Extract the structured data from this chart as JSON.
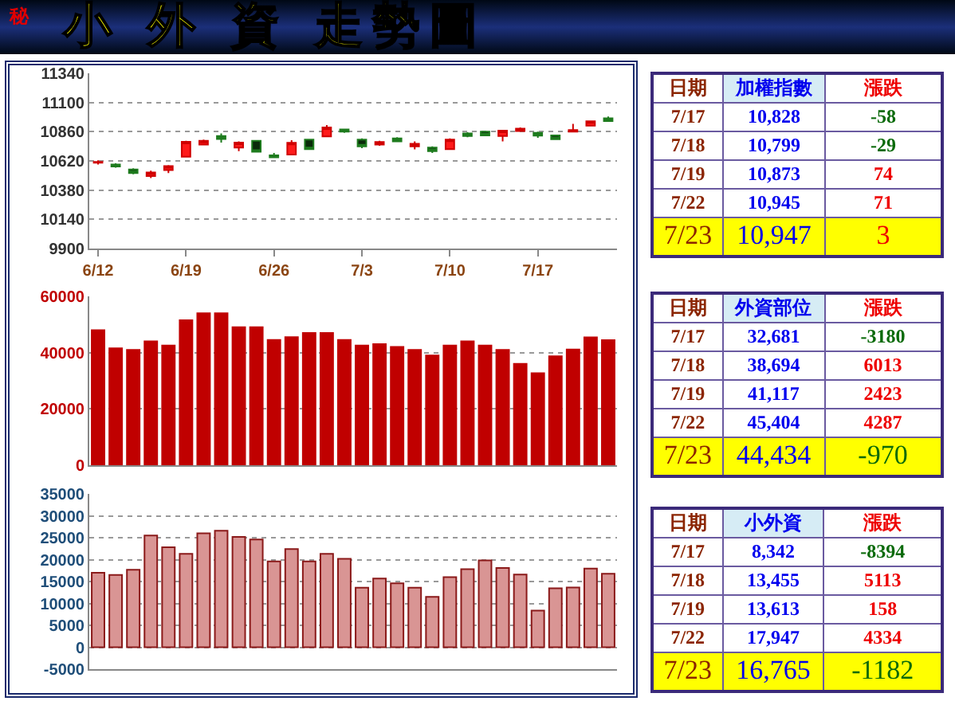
{
  "chart_data": [
    {
      "type": "candlestick",
      "title": "小 外 資 走勢圖",
      "annotations": [
        "秘"
      ],
      "categories": [
        "6/12",
        null,
        null,
        null,
        null,
        "6/19",
        null,
        null,
        null,
        null,
        "6/26",
        null,
        null,
        null,
        null,
        "7/3",
        null,
        null,
        null,
        null,
        "7/10",
        null,
        null,
        null,
        null,
        "7/17",
        null,
        null,
        null,
        null
      ],
      "ohlc": [
        [
          10605,
          10625,
          10590,
          10612
        ],
        [
          10590,
          10600,
          10565,
          10575
        ],
        [
          10550,
          10560,
          10510,
          10520
        ],
        [
          10495,
          10540,
          10480,
          10525
        ],
        [
          10545,
          10585,
          10520,
          10577
        ],
        [
          10655,
          10785,
          10650,
          10777
        ],
        [
          10755,
          10795,
          10750,
          10785
        ],
        [
          10825,
          10845,
          10770,
          10800
        ],
        [
          10730,
          10780,
          10700,
          10770
        ],
        [
          10786,
          10790,
          10690,
          10695
        ],
        [
          10665,
          10685,
          10645,
          10650
        ],
        [
          10673,
          10790,
          10665,
          10769
        ],
        [
          10795,
          10800,
          10710,
          10716
        ],
        [
          10821,
          10915,
          10815,
          10895
        ],
        [
          10878,
          10885,
          10850,
          10860
        ],
        [
          10795,
          10805,
          10725,
          10740
        ],
        [
          10755,
          10785,
          10745,
          10775
        ],
        [
          10805,
          10815,
          10775,
          10780
        ],
        [
          10740,
          10780,
          10715,
          10760
        ],
        [
          10730,
          10740,
          10685,
          10700
        ],
        [
          10716,
          10805,
          10710,
          10795
        ],
        [
          10845,
          10855,
          10815,
          10825
        ],
        [
          10860,
          10865,
          10825,
          10830
        ],
        [
          10825,
          10875,
          10780,
          10869
        ],
        [
          10865,
          10895,
          10860,
          10885
        ],
        [
          10851,
          10860,
          10810,
          10828
        ],
        [
          10830,
          10835,
          10795,
          10799
        ],
        [
          10860,
          10925,
          10860,
          10873
        ],
        [
          10910,
          10950,
          10905,
          10945
        ],
        [
          10970,
          10985,
          10940,
          10947
        ]
      ],
      "ylim": [
        9900,
        11340
      ],
      "yticks": [
        9900,
        10140,
        10380,
        10620,
        10860,
        11100,
        11340
      ],
      "grid": "y"
    },
    {
      "type": "bar",
      "categories": [
        null,
        null,
        null,
        null,
        null,
        null,
        null,
        null,
        null,
        null,
        null,
        null,
        null,
        null,
        null,
        null,
        null,
        null,
        null,
        null,
        null,
        null,
        null,
        null,
        null,
        null,
        null,
        null,
        null,
        null
      ],
      "values": [
        48000,
        41500,
        41000,
        44000,
        42500,
        51500,
        54000,
        54000,
        49000,
        49000,
        44500,
        45500,
        47000,
        47000,
        44500,
        42500,
        43000,
        42000,
        41000,
        39000,
        42500,
        44000,
        42500,
        41000,
        36000,
        32681,
        38694,
        41117,
        45404,
        44434
      ],
      "color": "#c00000",
      "ylim": [
        0,
        60000
      ],
      "yticks": [
        0,
        20000,
        40000,
        60000
      ],
      "grid": "y",
      "tick_labels": "y"
    },
    {
      "type": "bar",
      "categories": [
        null,
        null,
        null,
        null,
        null,
        null,
        null,
        null,
        null,
        null,
        null,
        null,
        null,
        null,
        null,
        null,
        null,
        null,
        null,
        null,
        null,
        null,
        null,
        null,
        null,
        null,
        null,
        null,
        null,
        null
      ],
      "values": [
        17000,
        16500,
        17700,
        25500,
        22800,
        21300,
        26000,
        26600,
        25200,
        24600,
        19600,
        22400,
        19600,
        21300,
        20200,
        13600,
        15700,
        14600,
        13600,
        11500,
        16000,
        17800,
        19800,
        18100,
        16600,
        8342,
        13455,
        13613,
        17947,
        16765
      ],
      "color": "#d99594",
      "ylim": [
        -5000,
        35000
      ],
      "yticks": [
        -5000,
        0,
        5000,
        10000,
        15000,
        20000,
        25000,
        30000,
        35000
      ],
      "grid": "y",
      "tick_labels": "y"
    },
    {
      "type": "other",
      "annotations": [
        "日期",
        "加權指數",
        "漲跌",
        "7/17",
        "10,828",
        "-58",
        "7/18",
        "10,799",
        "-29",
        "7/19",
        "10,873",
        "74",
        "7/22",
        "10,945",
        "71",
        "7/23",
        "10,947",
        "3"
      ]
    },
    {
      "type": "other",
      "annotations": [
        "日期",
        "外資部位",
        "漲跌",
        "7/17",
        "32,681",
        "-3180",
        "7/18",
        "38,694",
        "6013",
        "7/19",
        "41,117",
        "2423",
        "7/22",
        "45,404",
        "4287",
        "7/23",
        "44,434",
        "-970"
      ]
    },
    {
      "type": "other",
      "annotations": [
        "日期",
        "小外資",
        "漲跌",
        "7/17",
        "8,342",
        "-8394",
        "7/18",
        "13,455",
        "5113",
        "7/19",
        "13,613",
        "158",
        "7/22",
        "17,947",
        "4334",
        "7/23",
        "16,765",
        "-1182"
      ]
    }
  ]
}
